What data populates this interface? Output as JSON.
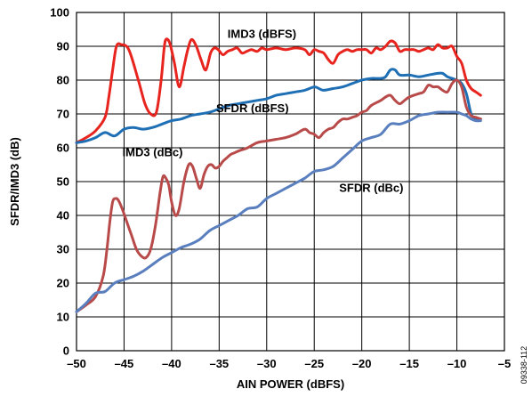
{
  "figure_id": "09338-112",
  "chart_data": {
    "type": "line",
    "title": "",
    "xlabel": "AIN POWER (dBFS)",
    "ylabel": "SFDR/IMD3 (dB)",
    "xlim": [
      -50,
      -5
    ],
    "ylim": [
      0,
      100
    ],
    "xticks": [
      -50,
      -45,
      -40,
      -35,
      -30,
      -25,
      -20,
      -15,
      -10,
      -5
    ],
    "xtick_labels": [
      "–50",
      "–45",
      "–40",
      "–35",
      "–30",
      "–25",
      "–20",
      "–15",
      "–10",
      "–5"
    ],
    "yticks": [
      0,
      10,
      20,
      30,
      40,
      50,
      60,
      70,
      80,
      90,
      100
    ],
    "ytick_labels": [
      "0",
      "10",
      "20",
      "30",
      "40",
      "50",
      "60",
      "70",
      "80",
      "90",
      "100"
    ],
    "grid": true,
    "legend": "none",
    "series": [
      {
        "name": "IMD3 (dBFS)",
        "color": "#e8241f",
        "x": [
          -50,
          -49,
          -48,
          -47,
          -46.6,
          -46.2,
          -45.8,
          -45.3,
          -44.5,
          -43.5,
          -42.8,
          -42.2,
          -41.6,
          -41.1,
          -40.8,
          -40.6,
          -40.2,
          -39.7,
          -39.2,
          -38.7,
          -38.3,
          -37.9,
          -37.4,
          -36.9,
          -36.4,
          -35.9,
          -35.5,
          -35.1,
          -34.6,
          -34.1,
          -33.6,
          -33.1,
          -32.6,
          -32.1,
          -31.6,
          -31,
          -30.5,
          -30,
          -29,
          -28,
          -27,
          -26,
          -25.5,
          -25,
          -24.5,
          -24,
          -23.5,
          -23,
          -22.5,
          -22,
          -21.5,
          -21,
          -20.5,
          -20,
          -19.5,
          -19,
          -18.5,
          -18,
          -17.5,
          -17,
          -16.5,
          -16,
          -15.5,
          -15,
          -14.5,
          -14,
          -13.5,
          -13,
          -12.5,
          -12,
          -11.5,
          -11,
          -10.5,
          -10,
          -9.5,
          -9,
          -8.5,
          -8,
          -7.5
        ],
        "y": [
          61.5,
          63,
          65,
          69,
          75,
          83,
          90,
          90.5,
          89,
          80,
          73,
          70,
          70.5,
          80,
          89,
          92,
          91,
          85,
          78,
          84,
          89,
          92,
          90,
          86,
          83,
          88,
          89.5,
          89,
          87.5,
          88.5,
          89,
          89.5,
          88,
          88.5,
          89,
          88.5,
          89.5,
          89,
          89.5,
          89,
          89.5,
          89,
          87.5,
          89,
          88.5,
          88,
          86,
          85,
          87.5,
          88.5,
          89,
          88.5,
          89,
          89,
          89,
          88,
          89.5,
          89,
          90,
          91.5,
          91,
          88.5,
          89,
          89,
          89,
          88.5,
          89,
          89.5,
          89,
          90.5,
          89.5,
          89.5,
          90,
          87,
          85,
          80,
          77.5,
          76.5,
          75.5
        ]
      },
      {
        "name": "SFDR (dBFS)",
        "color": "#1f6fb5",
        "x": [
          -50,
          -49,
          -48,
          -47,
          -46,
          -45,
          -44,
          -43,
          -42,
          -41,
          -40,
          -39,
          -38,
          -37,
          -36,
          -35,
          -34,
          -33,
          -32,
          -31,
          -30,
          -29,
          -28,
          -27,
          -26,
          -25,
          -24.5,
          -24,
          -23,
          -22,
          -21,
          -20,
          -19,
          -18,
          -17.5,
          -17,
          -16.5,
          -16,
          -15,
          -14,
          -13,
          -12,
          -11.5,
          -11,
          -10.5,
          -10,
          -9.5,
          -9,
          -8.5,
          -8,
          -7.5
        ],
        "y": [
          61.5,
          62,
          63,
          64.5,
          63.5,
          65.5,
          66,
          65.5,
          66,
          67,
          68,
          68.5,
          69.5,
          70,
          70.5,
          71.5,
          72.5,
          73,
          73.5,
          74,
          74.5,
          75.5,
          76,
          76.5,
          77,
          78,
          77.5,
          77,
          77.5,
          78,
          79,
          80,
          80.5,
          80.5,
          81,
          83,
          83,
          81.5,
          81.5,
          81,
          81.5,
          82,
          82,
          81,
          80.5,
          80,
          79,
          76,
          70,
          68.5,
          68.5
        ]
      },
      {
        "name": "IMD3 (dBc)",
        "color": "#b84a4a",
        "x": [
          -50,
          -49,
          -48,
          -47.2,
          -46.8,
          -46.5,
          -46.2,
          -45.9,
          -45.6,
          -45.2,
          -44.7,
          -44.2,
          -43.7,
          -43.2,
          -42.7,
          -42.2,
          -41.7,
          -41.2,
          -40.9,
          -40.6,
          -40.3,
          -40,
          -39.6,
          -39.2,
          -38.7,
          -38.2,
          -37.8,
          -37.4,
          -37,
          -36.6,
          -36.2,
          -35.8,
          -35.4,
          -35,
          -34.6,
          -34.2,
          -33.8,
          -33.4,
          -33,
          -32.5,
          -32,
          -31,
          -30,
          -29,
          -28,
          -27,
          -26,
          -25.5,
          -25,
          -24.5,
          -24,
          -23.5,
          -23,
          -22.5,
          -22,
          -21.5,
          -21,
          -20.5,
          -20,
          -19.5,
          -19,
          -18,
          -17.5,
          -17,
          -16.5,
          -16,
          -15.5,
          -15,
          -14,
          -13.5,
          -13,
          -12.5,
          -12,
          -11.5,
          -11,
          -10.5,
          -10,
          -9.5,
          -9,
          -8.5,
          -8,
          -7.5
        ],
        "y": [
          11.5,
          13.5,
          16,
          22,
          30,
          38,
          44,
          45,
          44.5,
          42,
          38,
          34,
          30,
          28,
          27.5,
          30,
          37,
          47,
          51.5,
          51,
          49,
          44,
          40,
          42,
          50,
          55,
          54.5,
          51,
          48,
          52,
          54.5,
          55,
          54,
          54.5,
          56,
          57,
          58,
          58.5,
          59,
          59.5,
          60,
          61.5,
          62,
          62.5,
          63,
          64,
          65.5,
          64.5,
          64,
          63,
          64.5,
          65.5,
          66,
          67.5,
          68.5,
          68.5,
          69,
          69.5,
          70.5,
          71,
          72.5,
          74,
          75,
          75.5,
          74,
          73,
          74,
          75,
          76,
          76.5,
          78.5,
          78,
          78,
          77,
          76.5,
          79,
          80,
          78,
          72,
          69.5,
          69,
          68.5
        ]
      },
      {
        "name": "SFDR (dBc)",
        "color": "#5a7fbf",
        "x": [
          -50,
          -49,
          -48,
          -47,
          -46,
          -45,
          -44,
          -43,
          -42,
          -41,
          -40,
          -39,
          -38,
          -37,
          -36,
          -35,
          -34,
          -33,
          -32,
          -31,
          -30,
          -29,
          -28,
          -27,
          -26,
          -25,
          -24,
          -23,
          -22,
          -21,
          -20,
          -19,
          -18,
          -17,
          -16,
          -15,
          -14,
          -13,
          -12,
          -11,
          -10,
          -9.5,
          -9,
          -8.5,
          -8,
          -7.5
        ],
        "y": [
          11.5,
          14,
          17,
          17.5,
          20,
          21,
          22,
          23.5,
          25.5,
          27.5,
          29,
          30.5,
          31.5,
          33,
          35.5,
          37,
          38.5,
          40,
          42,
          42.5,
          45,
          46.5,
          48,
          49.5,
          51,
          53,
          53.5,
          54.5,
          57,
          59.5,
          62,
          63,
          64,
          67,
          67,
          68,
          69.5,
          70,
          70.5,
          70.5,
          70.5,
          70,
          69.5,
          68.5,
          68,
          68
        ]
      }
    ],
    "annotations": [
      {
        "text": "IMD3 (dBFS)",
        "x": -30.5,
        "y": 92.5
      },
      {
        "text": "SFDR (dBFS)",
        "x": -31.5,
        "y": 70.5
      },
      {
        "text": "IMD3 (dBc)",
        "x": -42,
        "y": 57.5
      },
      {
        "text": "SFDR (dBc)",
        "x": -19,
        "y": 47
      }
    ]
  }
}
